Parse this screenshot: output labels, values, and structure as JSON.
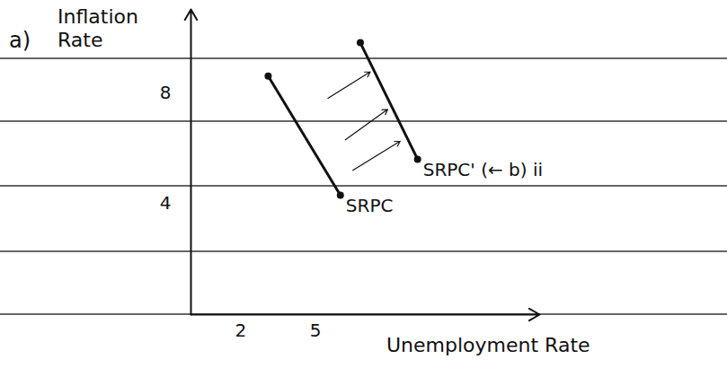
{
  "chart_data": {
    "type": "line",
    "title": "a)",
    "x_label": "Unemployment Rate",
    "y_label": "Inflation Rate",
    "xlim": [
      0,
      14
    ],
    "ylim": [
      0,
      11
    ],
    "xticks": [
      2,
      5
    ],
    "yticks": [
      4,
      8
    ],
    "grid": false,
    "marker": "dot",
    "series": [
      {
        "name": "SRPC",
        "color": "#111111",
        "x": [
          3.1,
          6.0
        ],
        "values": [
          8.6,
          4.3
        ]
      },
      {
        "name": "SRPC' (← b) ii",
        "color": "#111111",
        "x": [
          6.8,
          9.1
        ],
        "values": [
          9.8,
          5.6
        ]
      }
    ],
    "shift_arrows": [
      {
        "x": [
          5.5,
          7.2
        ],
        "values": [
          7.8,
          8.75
        ]
      },
      {
        "x": [
          6.2,
          7.9
        ],
        "values": [
          6.3,
          7.4
        ]
      },
      {
        "x": [
          6.5,
          8.4
        ],
        "values": [
          5.2,
          6.25
        ]
      }
    ]
  }
}
